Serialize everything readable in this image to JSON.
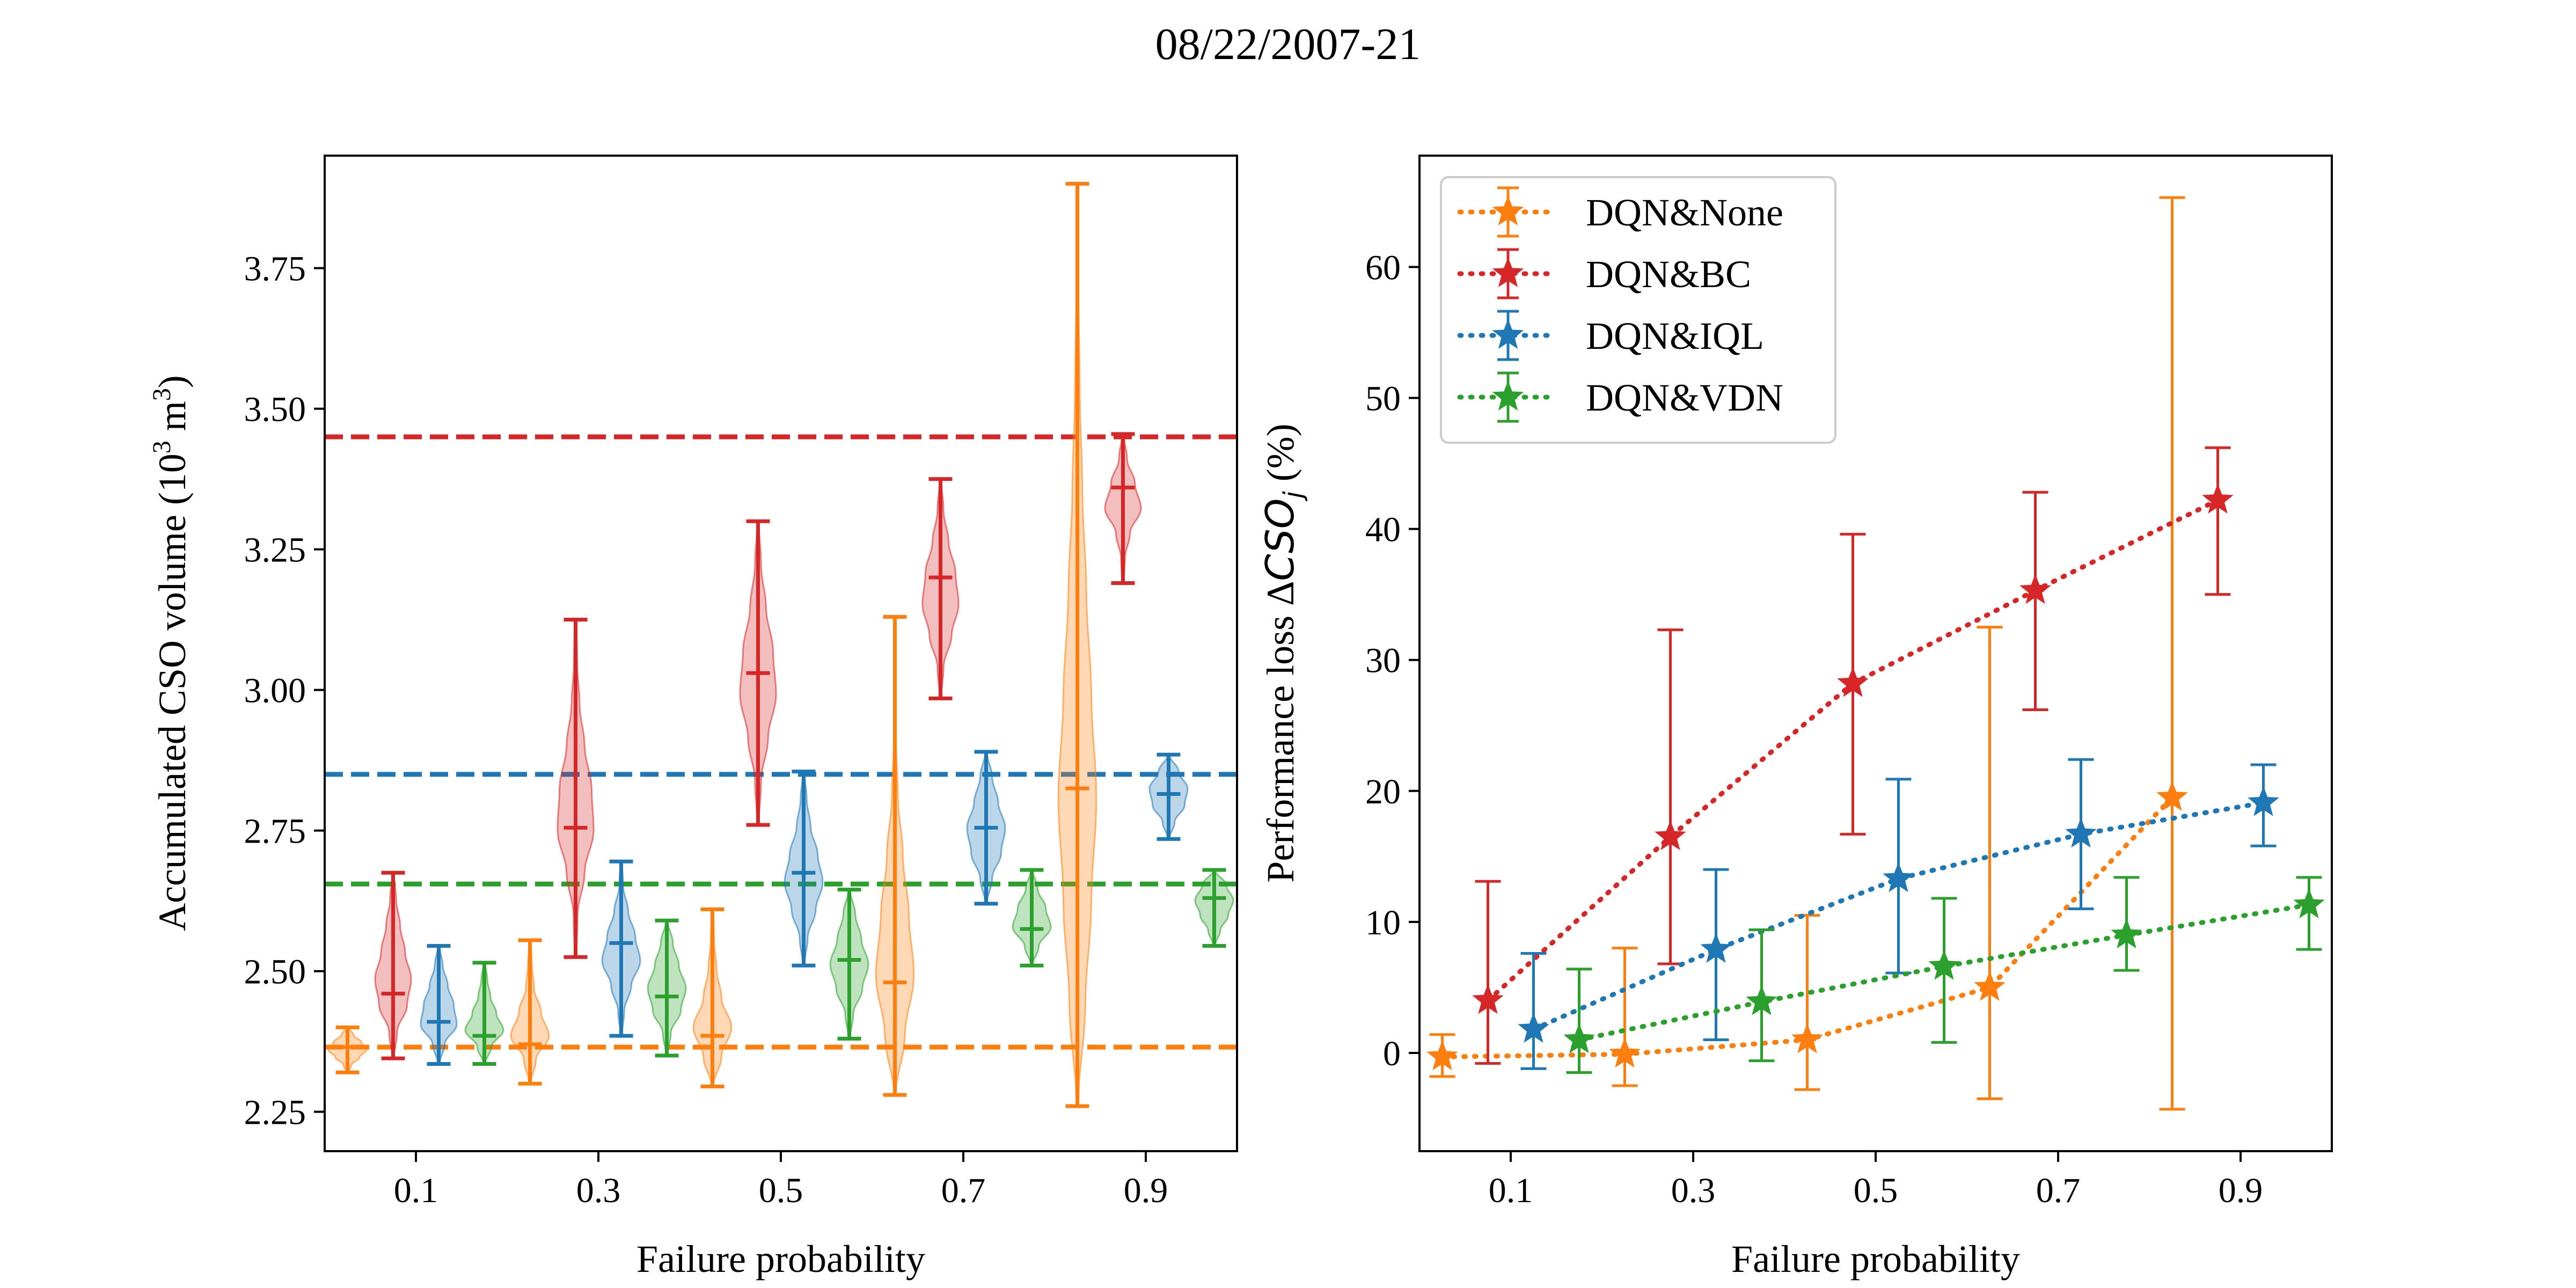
{
  "figure": {
    "title": "08/22/2007-21"
  },
  "colors": {
    "None": "#ff7f0e",
    "BC": "#d62728",
    "IQL": "#1f77b4",
    "VDN": "#2ca02c"
  },
  "chart_data": [
    {
      "type": "violin",
      "xlabel": "Failure probability",
      "ylabel": "Accumulated CSO volume (10",
      "ylabel_sup1": "3",
      "ylabel_mid": " m",
      "ylabel_sup2": "3",
      "ylabel_end": ")",
      "xlim": [
        0,
        1.0
      ],
      "ylim": [
        2.18,
        3.95
      ],
      "xticks": [
        0.1,
        0.3,
        0.5,
        0.7,
        0.9
      ],
      "xtick_labels": [
        "0.1",
        "0.3",
        "0.5",
        "0.7",
        "0.9"
      ],
      "yticks": [
        2.25,
        2.5,
        2.75,
        3.0,
        3.25,
        3.5,
        3.75
      ],
      "ytick_labels": [
        "2.25",
        "2.50",
        "2.75",
        "3.00",
        "3.25",
        "3.50",
        "3.75"
      ],
      "reference_lines": [
        {
          "series": "BC",
          "y": 3.45
        },
        {
          "series": "IQL",
          "y": 2.85
        },
        {
          "series": "VDN",
          "y": 2.655
        },
        {
          "series": "None",
          "y": 2.365
        }
      ],
      "violins": [
        {
          "series": "None",
          "x": 0.025,
          "min": 2.32,
          "max": 2.4,
          "median": 2.365,
          "shape": [
            0.2,
            0.6,
            0.95,
            0.7,
            0.3
          ],
          "width": 0.022
        },
        {
          "series": "BC",
          "x": 0.075,
          "min": 2.345,
          "max": 2.675,
          "median": 2.46,
          "shape": [
            0.2,
            0.7,
            0.9,
            0.6,
            0.35,
            0.15
          ],
          "width": 0.022
        },
        {
          "series": "IQL",
          "x": 0.125,
          "min": 2.335,
          "max": 2.545,
          "median": 2.41,
          "shape": [
            0.3,
            0.9,
            0.75,
            0.45,
            0.2
          ],
          "width": 0.022
        },
        {
          "series": "VDN",
          "x": 0.175,
          "min": 2.335,
          "max": 2.515,
          "median": 2.385,
          "shape": [
            0.35,
            0.95,
            0.6,
            0.3,
            0.15
          ],
          "width": 0.022
        },
        {
          "series": "None",
          "x": 0.225,
          "min": 2.3,
          "max": 2.555,
          "median": 2.37,
          "shape": [
            0.3,
            0.95,
            0.55,
            0.2,
            0.1
          ],
          "width": 0.022
        },
        {
          "series": "BC",
          "x": 0.275,
          "min": 2.525,
          "max": 3.125,
          "median": 2.755,
          "shape": [
            0.1,
            0.45,
            0.9,
            0.8,
            0.45,
            0.2,
            0.08
          ],
          "width": 0.022
        },
        {
          "series": "IQL",
          "x": 0.325,
          "min": 2.385,
          "max": 2.695,
          "median": 2.55,
          "shape": [
            0.15,
            0.5,
            0.95,
            0.7,
            0.35,
            0.1
          ],
          "width": 0.022
        },
        {
          "series": "VDN",
          "x": 0.375,
          "min": 2.35,
          "max": 2.59,
          "median": 2.455,
          "shape": [
            0.2,
            0.7,
            0.95,
            0.6,
            0.3
          ],
          "width": 0.022
        },
        {
          "series": "None",
          "x": 0.425,
          "min": 2.295,
          "max": 2.61,
          "median": 2.385,
          "shape": [
            0.45,
            0.95,
            0.45,
            0.2,
            0.08
          ],
          "width": 0.022
        },
        {
          "series": "BC",
          "x": 0.475,
          "min": 2.76,
          "max": 3.3,
          "median": 3.03,
          "shape": [
            0.15,
            0.5,
            0.9,
            0.75,
            0.4,
            0.15
          ],
          "width": 0.022
        },
        {
          "series": "IQL",
          "x": 0.525,
          "min": 2.51,
          "max": 2.855,
          "median": 2.675,
          "shape": [
            0.2,
            0.6,
            0.95,
            0.7,
            0.35,
            0.15
          ],
          "width": 0.022
        },
        {
          "series": "VDN",
          "x": 0.575,
          "min": 2.38,
          "max": 2.645,
          "median": 2.52,
          "shape": [
            0.2,
            0.65,
            0.95,
            0.6,
            0.3
          ],
          "width": 0.022
        },
        {
          "series": "None",
          "x": 0.625,
          "min": 2.28,
          "max": 3.13,
          "median": 2.48,
          "shape": [
            0.5,
            0.95,
            0.7,
            0.4,
            0.15,
            0.05,
            0.03
          ],
          "width": 0.022
        },
        {
          "series": "BC",
          "x": 0.675,
          "min": 2.985,
          "max": 3.375,
          "median": 3.2,
          "shape": [
            0.15,
            0.55,
            0.9,
            0.75,
            0.4,
            0.15
          ],
          "width": 0.022
        },
        {
          "series": "IQL",
          "x": 0.725,
          "min": 2.62,
          "max": 2.89,
          "median": 2.755,
          "shape": [
            0.3,
            0.75,
            0.95,
            0.6,
            0.3
          ],
          "width": 0.022
        },
        {
          "series": "VDN",
          "x": 0.775,
          "min": 2.51,
          "max": 2.68,
          "median": 2.575,
          "shape": [
            0.35,
            0.95,
            0.7,
            0.3
          ],
          "width": 0.022
        },
        {
          "series": "None",
          "x": 0.825,
          "min": 2.26,
          "max": 3.9,
          "median": 2.825,
          "shape": [
            0.4,
            0.7,
            0.95,
            0.7,
            0.45,
            0.25,
            0.12,
            0.05
          ],
          "width": 0.022
        },
        {
          "series": "BC",
          "x": 0.875,
          "min": 3.19,
          "max": 3.455,
          "median": 3.36,
          "shape": [
            0.1,
            0.35,
            0.9,
            0.6,
            0.2
          ],
          "width": 0.022
        },
        {
          "series": "IQL",
          "x": 0.925,
          "min": 2.735,
          "max": 2.885,
          "median": 2.815,
          "shape": [
            0.3,
            0.8,
            0.95,
            0.5
          ],
          "width": 0.022
        },
        {
          "series": "VDN",
          "x": 0.975,
          "min": 2.545,
          "max": 2.68,
          "median": 2.63,
          "shape": [
            0.3,
            0.7,
            0.95,
            0.6
          ],
          "width": 0.022
        }
      ]
    },
    {
      "type": "line",
      "xlabel": "Failure probability",
      "ylabel_prefix": "Performance loss Δ",
      "ylabel_var": "CSO",
      "ylabel_sub": "j",
      "ylabel_suffix": " (%)",
      "xlim": [
        0,
        1.0
      ],
      "ylim": [
        -7.5,
        68.5
      ],
      "xticks": [
        0.1,
        0.3,
        0.5,
        0.7,
        0.9
      ],
      "xtick_labels": [
        "0.1",
        "0.3",
        "0.5",
        "0.7",
        "0.9"
      ],
      "yticks": [
        0,
        10,
        20,
        30,
        40,
        50,
        60
      ],
      "ytick_labels": [
        "0",
        "10",
        "20",
        "30",
        "40",
        "50",
        "60"
      ],
      "legend_position": "top-left",
      "series": [
        {
          "name": "DQN&None",
          "key": "None",
          "x": [
            0.025,
            0.225,
            0.425,
            0.625,
            0.825
          ],
          "y": [
            -0.3,
            -0.1,
            1.0,
            5.0,
            19.5
          ],
          "err_low": [
            -1.8,
            -2.5,
            -2.8,
            -3.5,
            -4.3
          ],
          "err_high": [
            1.4,
            8.0,
            10.5,
            32.5,
            65.3
          ]
        },
        {
          "name": "DQN&BC",
          "key": "BC",
          "x": [
            0.075,
            0.275,
            0.475,
            0.675,
            0.875
          ],
          "y": [
            4.0,
            16.5,
            28.2,
            35.3,
            42.2
          ],
          "err_low": [
            -0.8,
            6.8,
            16.7,
            26.2,
            35.0
          ],
          "err_high": [
            13.1,
            32.3,
            39.6,
            42.8,
            46.2
          ]
        },
        {
          "name": "DQN&IQL",
          "key": "IQL",
          "x": [
            0.125,
            0.325,
            0.525,
            0.725,
            0.925
          ],
          "y": [
            1.8,
            7.9,
            13.3,
            16.7,
            19.1
          ],
          "err_low": [
            -1.2,
            1.0,
            6.1,
            11.0,
            15.8
          ],
          "err_high": [
            7.6,
            14.0,
            20.9,
            22.4,
            22.0
          ]
        },
        {
          "name": "DQN&VDN",
          "key": "VDN",
          "x": [
            0.175,
            0.375,
            0.575,
            0.775,
            0.975
          ],
          "y": [
            1.0,
            3.9,
            6.6,
            9.0,
            11.3
          ],
          "err_low": [
            -1.5,
            -0.6,
            0.8,
            6.3,
            7.9
          ],
          "err_high": [
            6.4,
            9.4,
            11.8,
            13.4,
            13.4
          ]
        }
      ]
    }
  ]
}
